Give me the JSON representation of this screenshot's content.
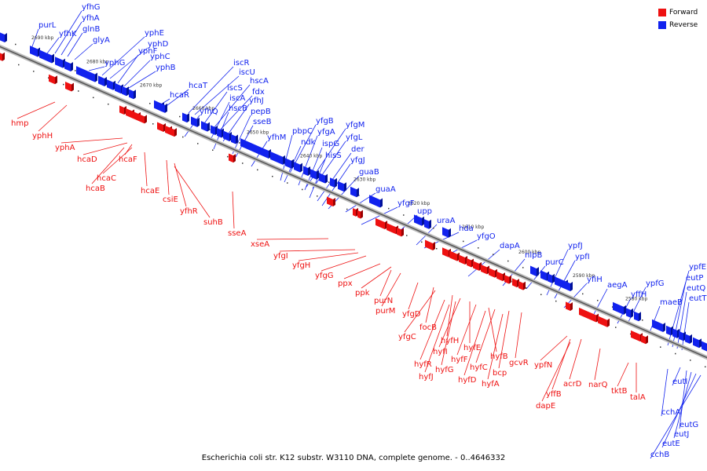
{
  "legend": {
    "forward_label": "Forward",
    "reverse_label": "Reverse"
  },
  "colors": {
    "forward": "#ee1111",
    "reverse": "#1122ee",
    "forward_dark": "#9b0000",
    "reverse_dark": "#001099",
    "backbone": "#888888"
  },
  "caption": "Escherichia coli str. K12 substr. W3110 DNA, complete genome. - 0..4646332",
  "ticks": [
    "2690 kbp",
    "2680 kbp",
    "2670 kbp",
    "2660 kbp",
    "2650 kbp",
    "2640 kbp",
    "2630 kbp",
    "2620 kbp",
    "2610 kbp",
    "2600 kbp",
    "2590 kbp",
    "2580 kbp"
  ],
  "reverse_genes": [
    "yfhG",
    "purL",
    "yfhA",
    "yfhK",
    "glnB",
    "glyA",
    "yphE",
    "yphD",
    "yphG",
    "yphF",
    "yphC",
    "yphB",
    "iscR",
    "iscU",
    "hcaT",
    "iscS",
    "hscA",
    "hcaR",
    "fdx",
    "iscA",
    "yfhJ",
    "hscB",
    "yfhQ",
    "pepB",
    "sseB",
    "yfgB",
    "pbpC",
    "yfgM",
    "yfhM",
    "ndk",
    "yfgA",
    "yfgL",
    "ispG",
    "hisS",
    "der",
    "yfgJ",
    "guaB",
    "guaA",
    "yfgF",
    "upp",
    "uraA",
    "hda",
    "yfgO",
    "dapA",
    "ypfJ",
    "nlpB",
    "purC",
    "ypfI",
    "yfiH",
    "aegA",
    "ypfG",
    "yffH",
    "maeB",
    "ypfE",
    "eutP",
    "eutQ",
    "eutT",
    "eutI",
    "cchA",
    "eutG",
    "eutJ",
    "eutE",
    "cchB"
  ],
  "forward_genes": [
    "hmp",
    "yphH",
    "yphA",
    "hcaD",
    "hcaF",
    "hcaC",
    "hcaB",
    "hcaE",
    "csiE",
    "yfhR",
    "suhB",
    "sseA",
    "xseA",
    "yfgI",
    "yfgH",
    "yfgG",
    "ppx",
    "ppk",
    "purN",
    "purM",
    "yfgD",
    "focB",
    "yfgC",
    "hyfH",
    "hyfE",
    "hyfI",
    "hyfB",
    "hyfR",
    "hyfF",
    "gcvR",
    "hyfG",
    "hyfC",
    "bcp",
    "hyfJ",
    "hyfD",
    "hyfA",
    "ypfN",
    "acrD",
    "narQ",
    "yffB",
    "tktB",
    "talA",
    "dapE"
  ]
}
